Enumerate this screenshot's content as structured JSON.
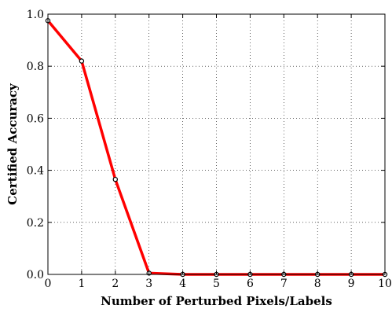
{
  "chart_data": {
    "type": "line",
    "title": "",
    "xlabel": "Number of Perturbed Pixels/Labels",
    "ylabel": "Certified Accuracy",
    "xlim": [
      0,
      10
    ],
    "ylim": [
      0.0,
      1.0
    ],
    "x_ticks": [
      "0",
      "1",
      "2",
      "3",
      "4",
      "5",
      "6",
      "7",
      "8",
      "9",
      "10"
    ],
    "y_ticks": [
      "0.0",
      "0.2",
      "0.4",
      "0.6",
      "0.8",
      "1.0"
    ],
    "grid": true,
    "grid_style": "dotted",
    "series": [
      {
        "color": "#ff0000",
        "marker_color": "#000000",
        "x": [
          0,
          1,
          2,
          3,
          4,
          5,
          6,
          7,
          8,
          9,
          10
        ],
        "values": [
          0.975,
          0.82,
          0.365,
          0.005,
          0.0,
          0.0,
          0.0,
          0.0,
          0.0,
          0.0,
          0.0
        ]
      }
    ]
  }
}
